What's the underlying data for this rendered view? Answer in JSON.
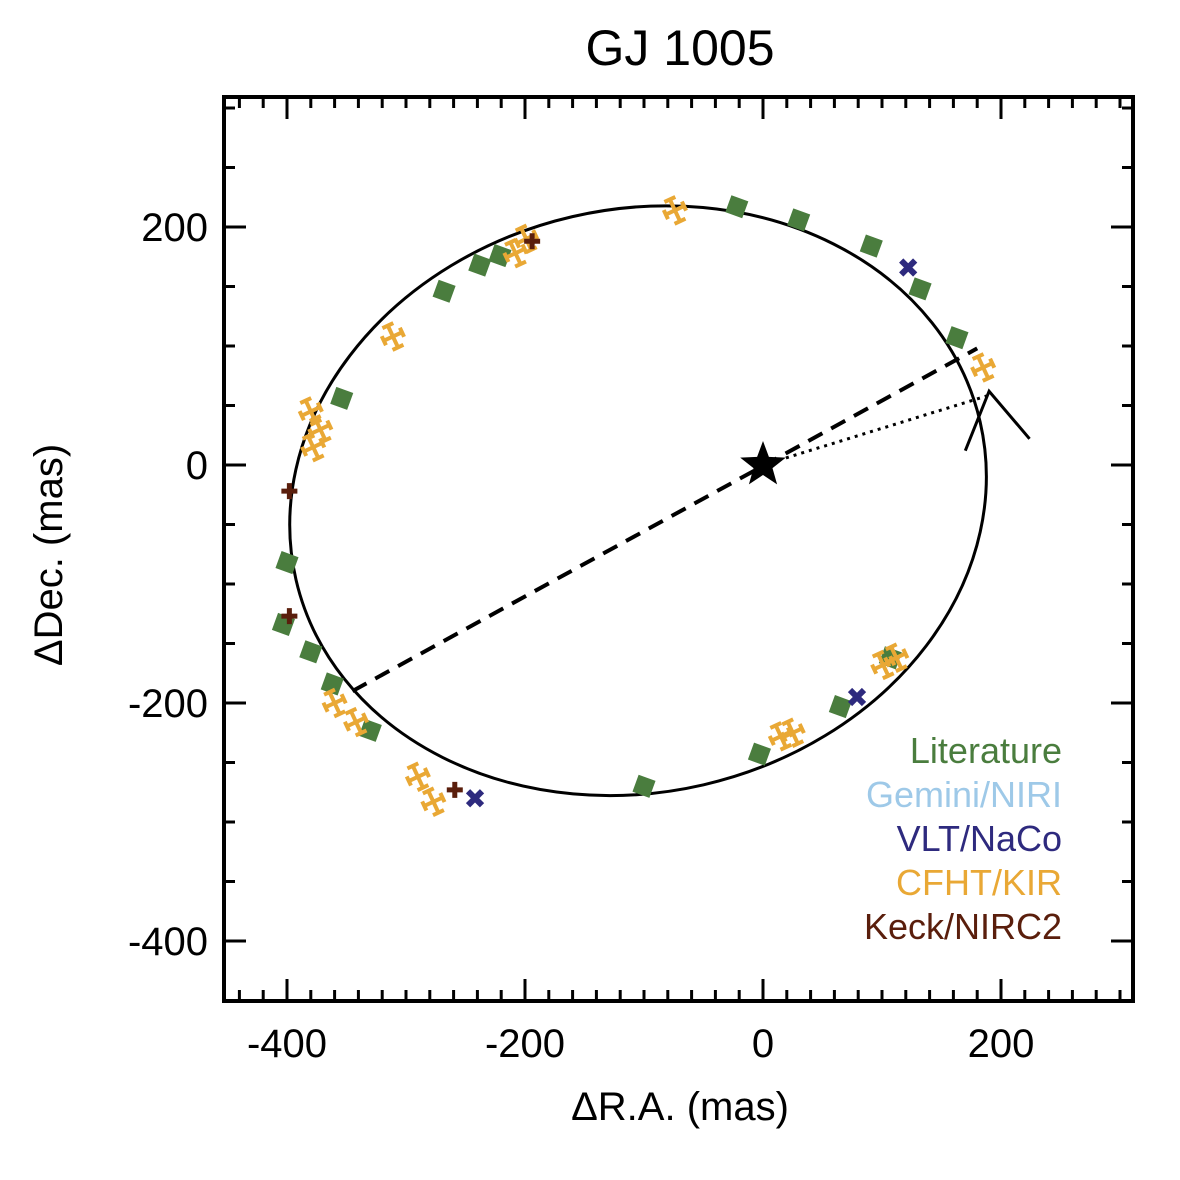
{
  "chart_data": {
    "type": "scatter",
    "title": "GJ 1005",
    "xlabel": "ΔR.A. (mas)",
    "ylabel": "ΔDec. (mas)",
    "xlim": [
      -450,
      310
    ],
    "ylim": [
      -450,
      310
    ],
    "x_reversed": false,
    "x_ticks": [
      -400,
      -200,
      0,
      200
    ],
    "y_ticks": [
      200,
      0,
      -200,
      -400
    ],
    "x_tick_labels": [
      "-400",
      "-200",
      "0",
      "200"
    ],
    "y_tick_labels": [
      "200",
      "0",
      "-200",
      "-400"
    ],
    "grid": false,
    "legend_position": "bottom-right",
    "orbit": {
      "center": [
        -105,
        -30
      ],
      "semi_axes": [
        295,
        245
      ],
      "rotation_deg": 13
    },
    "line_of_nodes": [
      [
        -345,
        -190
      ],
      [
        180,
        98
      ]
    ],
    "periastron_line": [
      [
        0,
        0
      ],
      [
        188,
        58
      ]
    ],
    "star_marker": [
      0,
      0
    ],
    "direction_arrow": {
      "tip": [
        190,
        62
      ],
      "from_left": [
        170,
        12
      ],
      "from_right": [
        224,
        22
      ]
    },
    "series": [
      {
        "name": "Literature",
        "color": "#4a7d3e",
        "marker": "square",
        "x": [
          -22,
          30,
          91,
          132,
          163,
          -221,
          -238,
          -268,
          -354,
          -400,
          -403,
          -380,
          -362,
          -330,
          -100,
          -3,
          65,
          107
        ],
        "y": [
          217,
          206,
          184,
          148,
          107,
          176,
          168,
          146,
          56,
          -82,
          -134,
          -157,
          -184,
          -223,
          -270,
          -243,
          -203,
          -162
        ]
      },
      {
        "name": "Gemini/NIRI",
        "color": "#9ec9e8",
        "marker": "square",
        "x": [],
        "y": []
      },
      {
        "name": "VLT/NaCo",
        "color": "#2e2a7e",
        "marker": "x",
        "x": [
          122,
          79,
          -242
        ],
        "y": [
          166,
          -195,
          -280
        ]
      },
      {
        "name": "CFHT/KIR",
        "color": "#e9a835",
        "marker": "errorbar",
        "x": [
          -74,
          -199,
          -208,
          -311,
          -380,
          -372,
          -378,
          -360,
          -342,
          -290,
          -277,
          25,
          15,
          112,
          101,
          185
        ],
        "y": [
          214,
          190,
          178,
          108,
          45,
          30,
          15,
          -200,
          -216,
          -262,
          -283,
          -225,
          -228,
          -162,
          -168,
          82
        ]
      },
      {
        "name": "Keck/NIRC2",
        "color": "#5a1e0c",
        "marker": "plus",
        "x": [
          -194,
          -398,
          -398,
          -259
        ],
        "y": [
          188,
          -22,
          -127,
          -273
        ]
      }
    ]
  }
}
